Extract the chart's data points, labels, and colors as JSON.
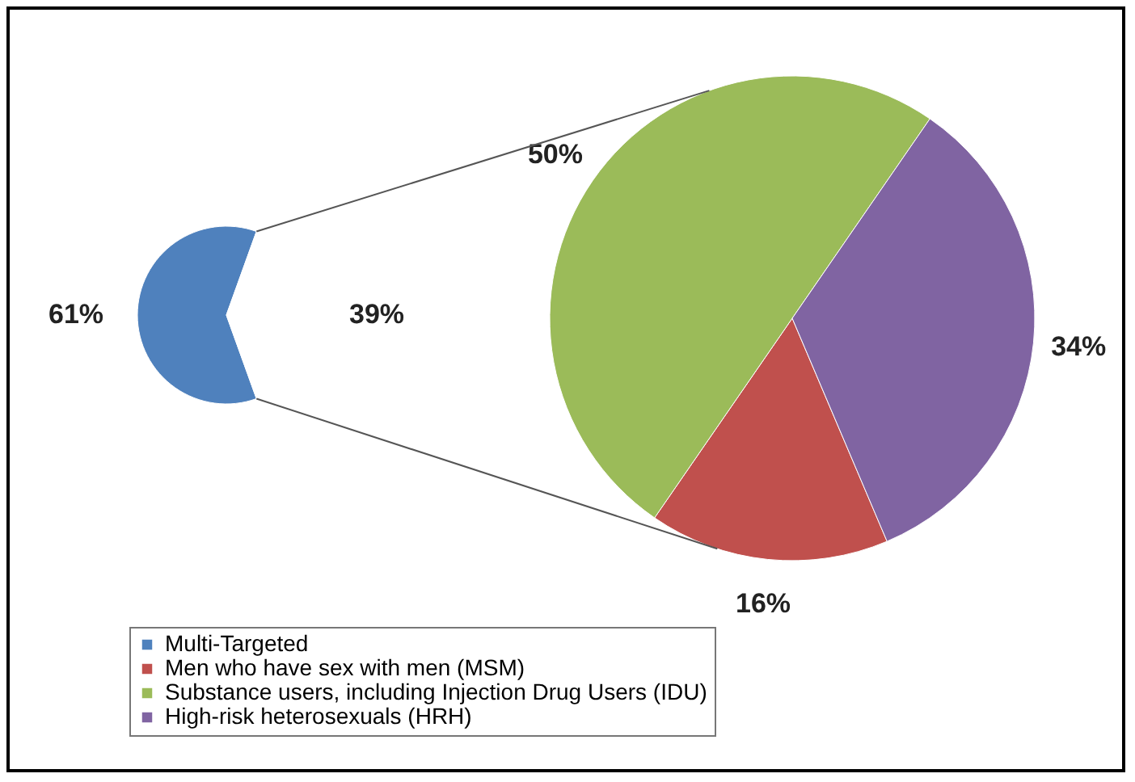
{
  "chart_data": [
    {
      "type": "pie",
      "categories": [
        "Multi-Targeted",
        null
      ],
      "values": [
        61,
        39
      ],
      "colors": [
        "#4f81bd",
        "#ffffff"
      ],
      "value_labels": [
        "61%",
        "39%"
      ],
      "legend": "bottom"
    },
    {
      "type": "pie",
      "categories": [
        "Men who have sex with men (MSM)",
        "Substance users, including Injection Drug Users (IDU)",
        "High-risk heterosexuals (HRH)"
      ],
      "values": [
        16,
        50,
        34
      ],
      "colors": [
        "#c0504d",
        "#9bbb59",
        "#8064a2"
      ],
      "value_labels": [
        "16%",
        "50%",
        "34%"
      ],
      "legend": "bottom"
    }
  ]
}
